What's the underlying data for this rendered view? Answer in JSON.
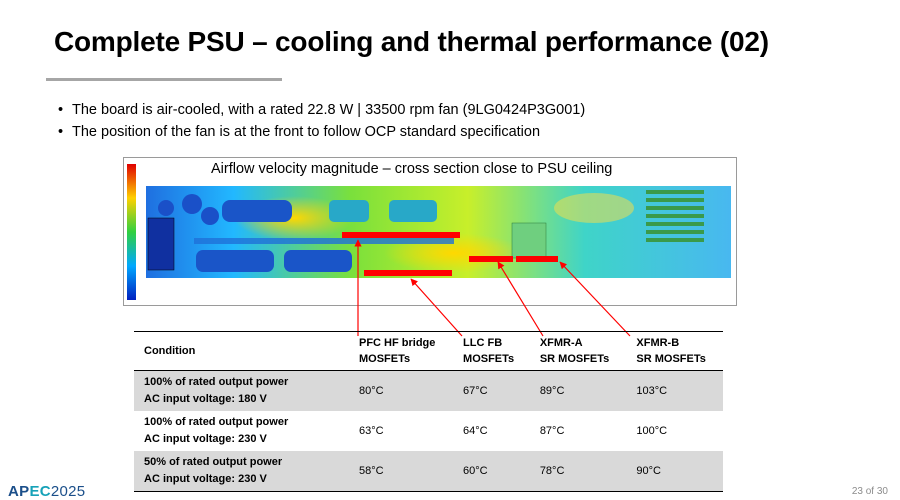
{
  "slide": {
    "title": "Complete PSU – cooling and thermal performance (02)",
    "bullets": [
      "The board is air-cooled, with a rated 22.8 W | 33500 rpm fan (9LG0424P3G001)",
      "The position of the fan is at the front to follow OCP standard specification"
    ]
  },
  "figure": {
    "caption": "Airflow velocity magnitude – cross section close to PSU ceiling"
  },
  "table": {
    "headers": {
      "condition": "Condition",
      "col1": [
        "PFC HF bridge",
        "MOSFETs"
      ],
      "col2": [
        "LLC FB",
        "MOSFETs"
      ],
      "col3": [
        "XFMR-A",
        "SR MOSFETs"
      ],
      "col4": [
        "XFMR-B",
        "SR MOSFETs"
      ]
    },
    "rows": [
      {
        "condition": [
          "100% of rated output power",
          "AC input voltage: 180 V"
        ],
        "values": [
          "80°C",
          "67°C",
          "89°C",
          "103°C"
        ]
      },
      {
        "condition": [
          "100% of rated output power",
          "AC input voltage: 230 V"
        ],
        "values": [
          "63°C",
          "64°C",
          "87°C",
          "100°C"
        ]
      },
      {
        "condition": [
          "50% of rated output power",
          "AC input voltage: 230 V"
        ],
        "values": [
          "58°C",
          "60°C",
          "78°C",
          "90°C"
        ]
      }
    ]
  },
  "footer": {
    "logo_part1": "AP",
    "logo_part2": "EC",
    "logo_part3": "2025",
    "page": "23 of 30"
  },
  "colors": {
    "highlight_red": "#ff0000",
    "table_shade": "#d9d9d9",
    "rule_gray": "#a6a6a6"
  }
}
